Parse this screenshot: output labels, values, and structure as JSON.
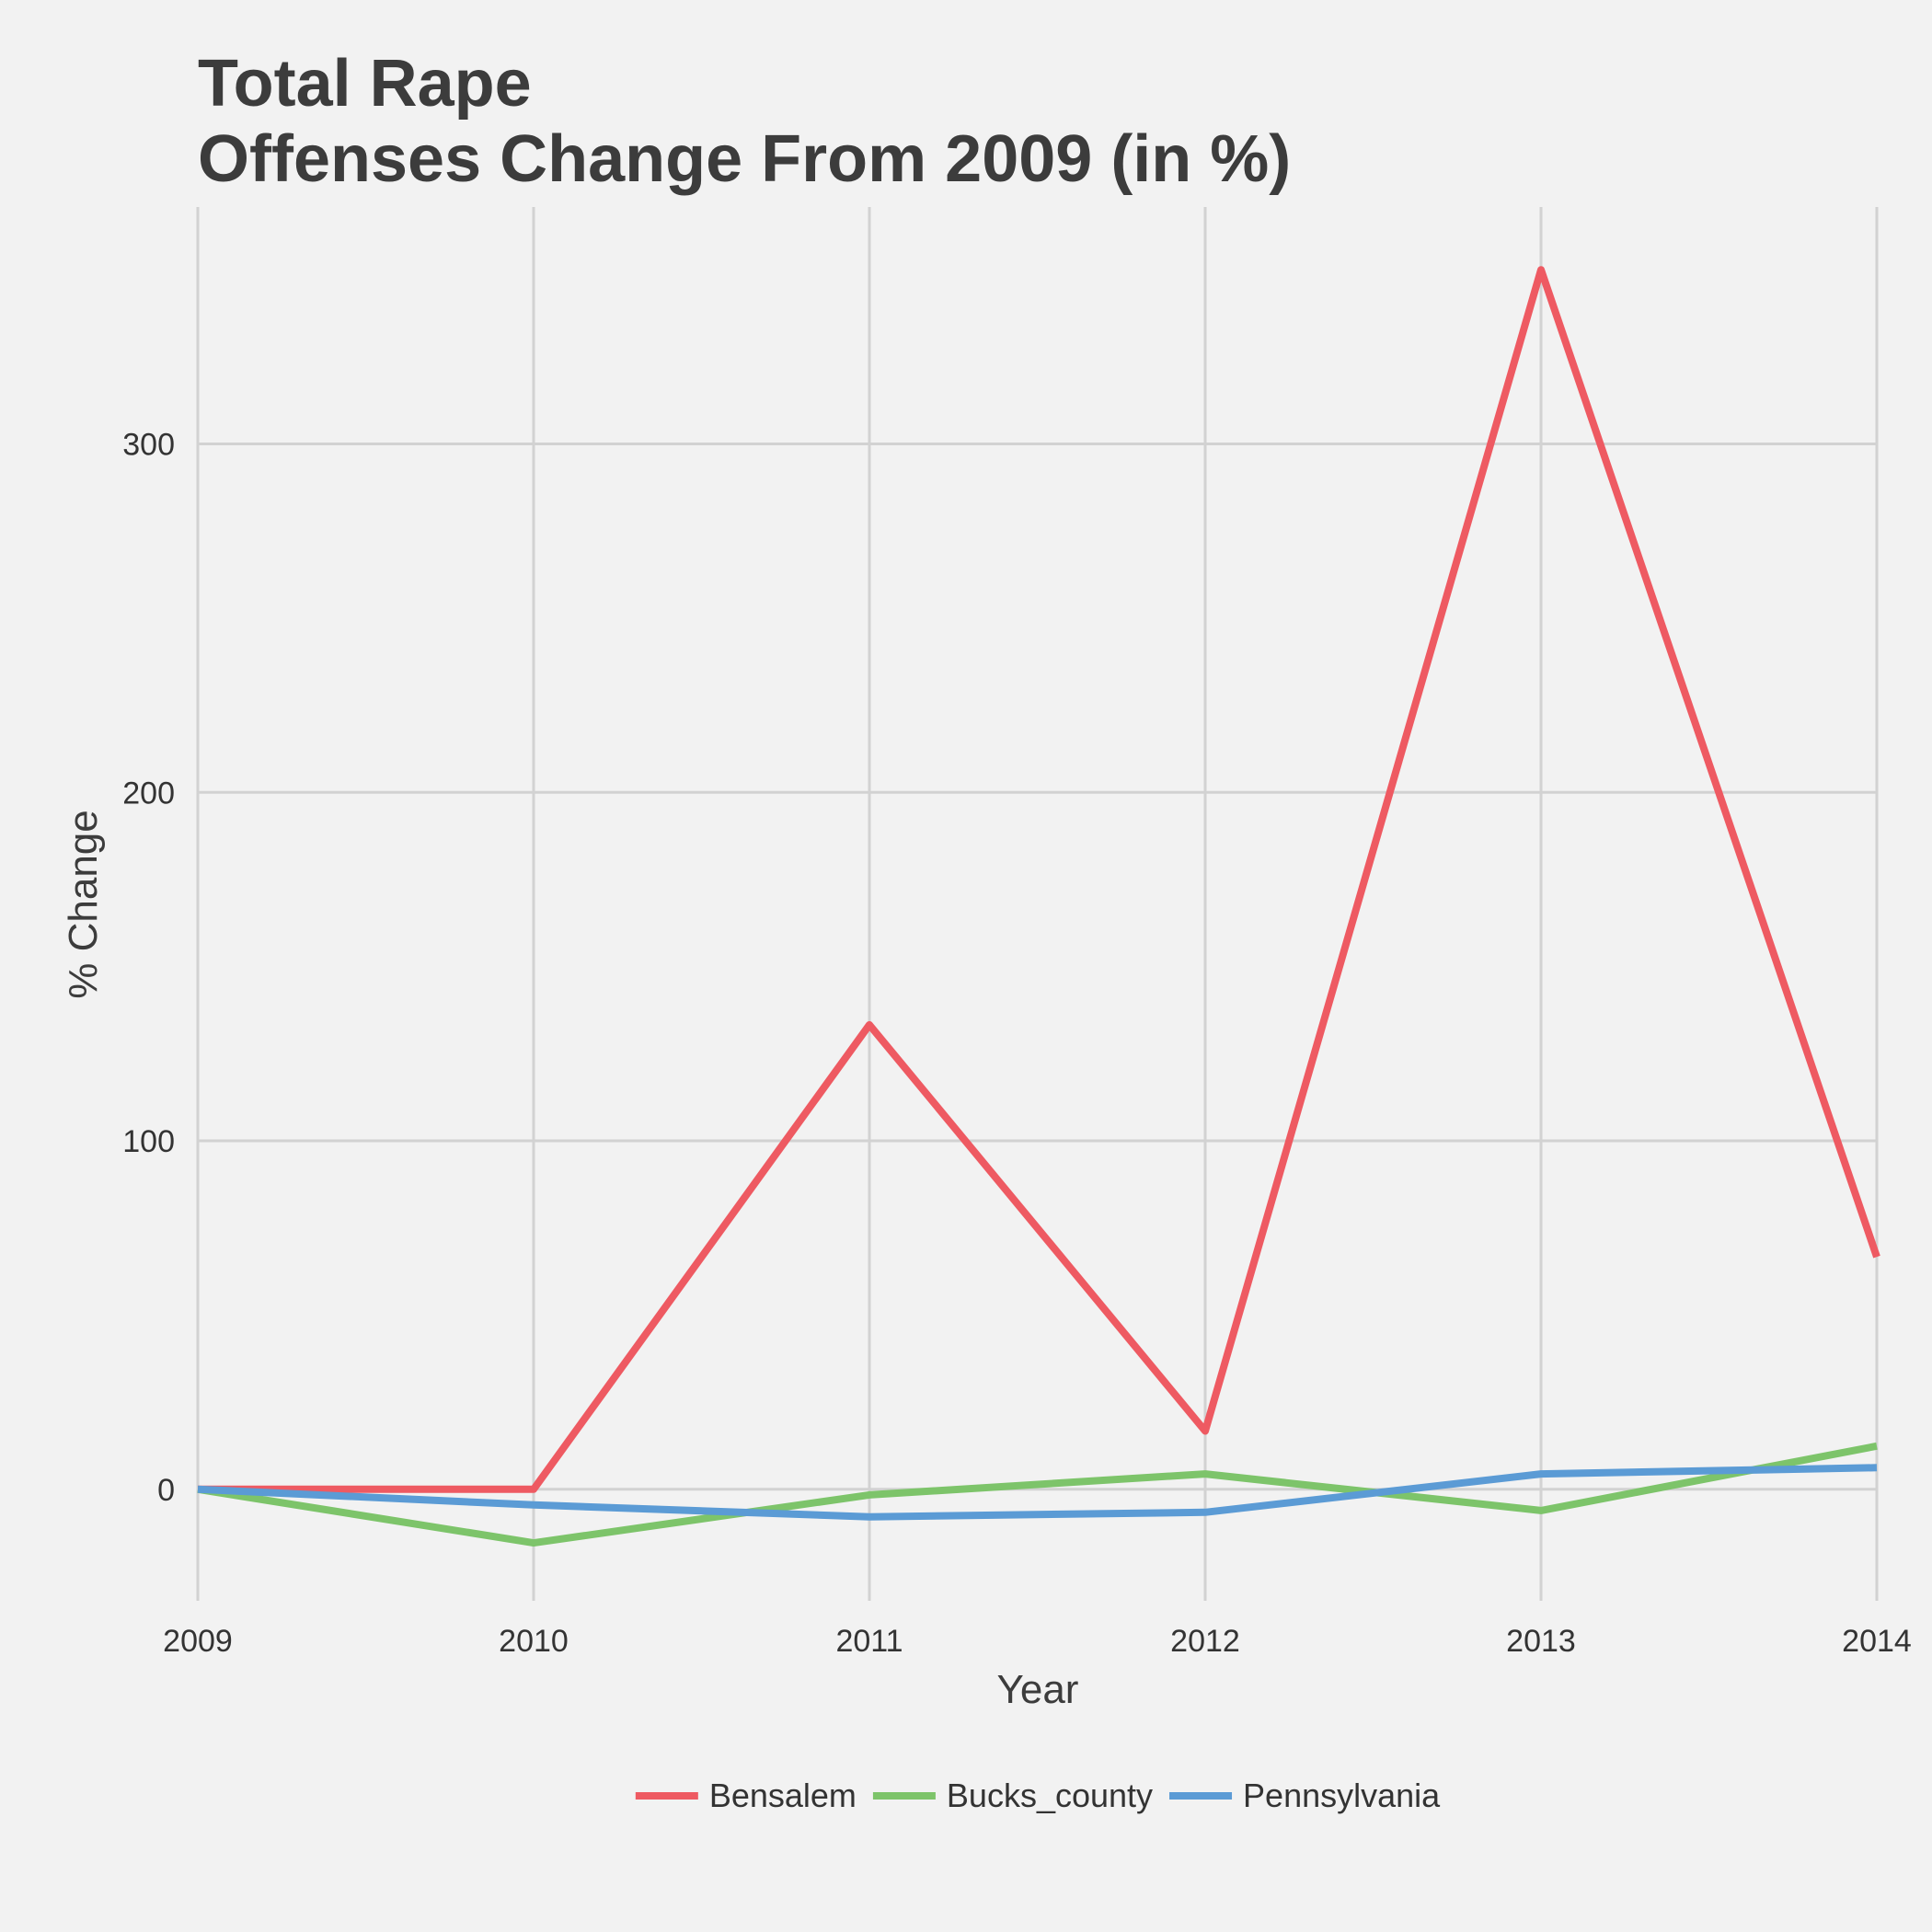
{
  "chart_data": {
    "type": "line",
    "title": [
      "Total Rape",
      "Offenses Change From 2009 (in %)"
    ],
    "xlabel": "Year",
    "ylabel": "% Change",
    "x": [
      2009,
      2010,
      2011,
      2012,
      2013,
      2014
    ],
    "x_ticks": [
      "2009",
      "2010",
      "2011",
      "2012",
      "2013",
      "2014"
    ],
    "y_ticks": [
      0,
      100,
      200,
      300
    ],
    "xlim": [
      2009,
      2014
    ],
    "ylim": [
      -32,
      368
    ],
    "grid": true,
    "legend_position": "bottom",
    "series": [
      {
        "name": "Bensalem",
        "color": "#ee5a62",
        "values": [
          0,
          0,
          133.3,
          16.7,
          350,
          66.7
        ]
      },
      {
        "name": "Bucks_county",
        "color": "#7dc46a",
        "values": [
          0,
          -15.4,
          -1.6,
          4.4,
          -6.1,
          12.4
        ]
      },
      {
        "name": "Pennsylvania",
        "color": "#5b9bd5",
        "values": [
          0,
          -4.5,
          -7.9,
          -6.6,
          4.4,
          6.2
        ]
      }
    ]
  }
}
